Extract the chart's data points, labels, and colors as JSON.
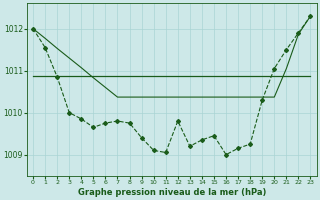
{
  "title": "Graphe pression niveau de la mer (hPa)",
  "background_color": "#cde8e8",
  "grid_color": "#aad4d4",
  "line_color": "#1a5c1a",
  "xlim": [
    -0.5,
    23.5
  ],
  "ylim": [
    1008.5,
    1012.6
  ],
  "yticks": [
    1009,
    1010,
    1011,
    1012
  ],
  "xtick_labels": [
    "0",
    "1",
    "2",
    "3",
    "4",
    "5",
    "6",
    "7",
    "8",
    "9",
    "10",
    "11",
    "12",
    "13",
    "14",
    "15",
    "16",
    "17",
    "18",
    "19",
    "20",
    "21",
    "22",
    "23"
  ],
  "line_jagged": [
    1012.0,
    1011.55,
    1010.85,
    1010.0,
    1009.85,
    1009.65,
    1009.75,
    1009.8,
    1009.75,
    1009.4,
    1009.1,
    1009.05,
    1009.8,
    1009.2,
    1009.35,
    1009.45,
    1009.0,
    1009.15,
    1009.25,
    1010.3,
    1011.05,
    1011.5,
    1011.9,
    1012.3
  ],
  "line_flat": [
    1010.87,
    1010.87,
    1010.87,
    1010.87,
    1010.87,
    1010.87,
    1010.87,
    1010.87,
    1010.87,
    1010.87,
    1010.87,
    1010.87,
    1010.87,
    1010.87,
    1010.87,
    1010.87,
    1010.87,
    1010.87,
    1010.87,
    1010.87,
    1010.87,
    1010.87,
    1010.87,
    1010.87
  ],
  "line_diagonal": [
    1012.0,
    1011.77,
    1011.53,
    1011.3,
    1011.07,
    1010.83,
    1010.6,
    1010.37,
    1010.37,
    1010.37,
    1010.37,
    1010.37,
    1010.37,
    1010.37,
    1010.37,
    1010.37,
    1010.37,
    1010.37,
    1010.37,
    1010.37,
    1010.37,
    1011.05,
    1011.87,
    1012.3
  ]
}
